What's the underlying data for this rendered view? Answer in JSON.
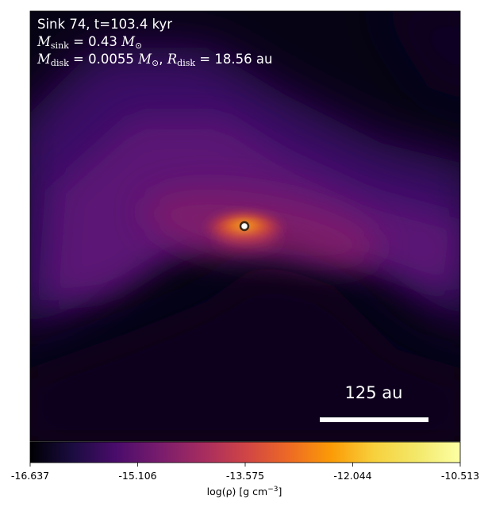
{
  "annotation": {
    "line1": "Sink 74, t=103.4 kyr",
    "m_sink_symbol": "M",
    "m_sink_sub": "sink",
    "m_sink_value": "= 0.43",
    "m_sink_unit": "M",
    "m_sink_unit_sub": "⊙",
    "m_disk_symbol": "M",
    "m_disk_sub": "disk",
    "m_disk_value": "= 0.0055",
    "m_disk_unit": "M",
    "m_disk_unit_sub": "⊙",
    "r_disk_symbol": "R",
    "r_disk_sub": "disk",
    "r_disk_value": "= 18.56 au"
  },
  "scalebar": {
    "label": "125 au"
  },
  "colorbar": {
    "colormap": "inferno",
    "ticks": [
      "-16.637",
      "-15.106",
      "-13.575",
      "-12.044",
      "-10.513"
    ],
    "label_main": "log(ρ) [g cm",
    "label_sup": "−3",
    "label_end": "]"
  },
  "colors": {
    "background_dark": "#050312",
    "envelope_purple": "#5c1275",
    "core_orange": "#f3731b",
    "sink_marker_fill": "#ffffff",
    "sink_marker_edge": "#3b2414"
  }
}
